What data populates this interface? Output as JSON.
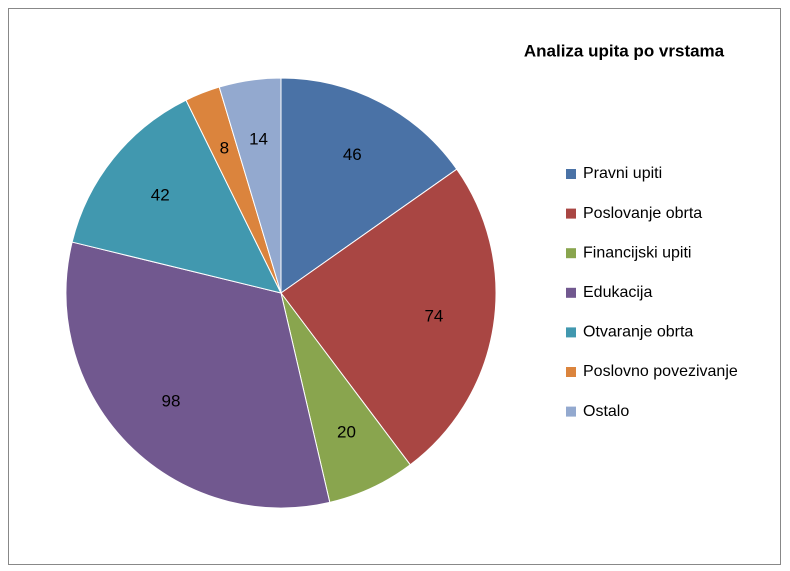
{
  "chart_data": {
    "type": "pie",
    "title": "Analiza upita po vrstama",
    "categories": [
      "Pravni upiti",
      "Poslovanje obrta",
      "Financijski upiti",
      "Edukacija",
      "Otvaranje obrta",
      "Poslovno povezivanje",
      "Ostalo"
    ],
    "values": [
      46,
      74,
      20,
      98,
      42,
      8,
      14
    ],
    "colors": [
      "#4a72a6",
      "#a94643",
      "#89a54e",
      "#71588f",
      "#4198af",
      "#db843d",
      "#93a9cf"
    ],
    "legend": "right"
  }
}
